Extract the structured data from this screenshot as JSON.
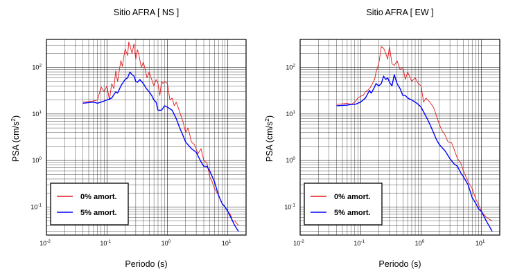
{
  "colors": {
    "series_0": "#e31a1c",
    "series_5": "#0000ff",
    "grid": "#000000"
  },
  "chart_data": [
    {
      "type": "line",
      "title": "Sitio AFRA [ NS ]",
      "xlabel": "Periodo (s)",
      "ylabel_main": "PSA (cm/s",
      "ylabel_sup": "2",
      "ylabel_tail": ")",
      "xscale": "log",
      "yscale": "log",
      "xlim": [
        0.01,
        20
      ],
      "ylim": [
        0.025,
        400
      ],
      "grid": true,
      "legend_position": "bottom-left",
      "x_tick_labels": [
        {
          "base": "10",
          "exp": "-2",
          "value": 0.01
        },
        {
          "base": "10",
          "exp": "-1",
          "value": 0.1
        },
        {
          "base": "10",
          "exp": "0",
          "value": 1
        },
        {
          "base": "10",
          "exp": "1",
          "value": 10
        }
      ],
      "y_tick_labels": [
        {
          "base": "10",
          "exp": "-1",
          "value": 0.1
        },
        {
          "base": "10",
          "exp": "0",
          "value": 1
        },
        {
          "base": "10",
          "exp": "1",
          "value": 10
        },
        {
          "base": "10",
          "exp": "2",
          "value": 100
        }
      ],
      "series": [
        {
          "name": "0% amort.",
          "color_key": "series_0",
          "x": [
            0.04,
            0.06,
            0.07,
            0.08,
            0.09,
            0.1,
            0.11,
            0.12,
            0.13,
            0.14,
            0.15,
            0.17,
            0.18,
            0.2,
            0.22,
            0.23,
            0.24,
            0.26,
            0.28,
            0.3,
            0.32,
            0.34,
            0.37,
            0.4,
            0.43,
            0.46,
            0.5,
            0.55,
            0.6,
            0.65,
            0.7,
            0.75,
            0.8,
            0.85,
            0.9,
            1.0,
            1.1,
            1.2,
            1.3,
            1.4,
            1.6,
            1.8,
            2.0,
            2.2,
            2.5,
            2.8,
            3.2,
            3.6,
            4.0,
            4.5,
            5.0,
            5.5,
            6.0,
            7.0,
            8.0,
            9.0,
            10.0,
            11.0,
            12.0,
            13.0,
            15.0
          ],
          "y": [
            18,
            19,
            20,
            38,
            30,
            40,
            20,
            45,
            35,
            85,
            50,
            140,
            105,
            250,
            180,
            350,
            300,
            200,
            320,
            150,
            240,
            180,
            100,
            130,
            90,
            60,
            80,
            55,
            40,
            55,
            45,
            25,
            50,
            45,
            50,
            45,
            20,
            22,
            15,
            18,
            11,
            7,
            4,
            5,
            2.5,
            2.2,
            1.4,
            1.8,
            1.0,
            0.9,
            0.45,
            0.35,
            0.25,
            0.18,
            0.12,
            0.1,
            0.08,
            0.07,
            0.05,
            0.05,
            0.04
          ]
        },
        {
          "name": "5% amort.",
          "color_key": "series_5",
          "x": [
            0.04,
            0.06,
            0.07,
            0.08,
            0.09,
            0.1,
            0.12,
            0.14,
            0.15,
            0.17,
            0.18,
            0.2,
            0.22,
            0.24,
            0.26,
            0.28,
            0.3,
            0.32,
            0.35,
            0.4,
            0.45,
            0.5,
            0.55,
            0.6,
            0.65,
            0.7,
            0.8,
            0.9,
            1.0,
            1.2,
            1.4,
            1.6,
            1.8,
            2.0,
            2.5,
            3.0,
            3.5,
            4.0,
            4.5,
            5.0,
            6.0,
            7.0,
            8.0,
            9.0,
            10.0,
            12.0,
            13.0,
            15.0
          ],
          "y": [
            17,
            18,
            17,
            18,
            19,
            20,
            22,
            30,
            28,
            40,
            45,
            55,
            60,
            80,
            70,
            65,
            50,
            48,
            55,
            45,
            35,
            30,
            25,
            20,
            18,
            12,
            12,
            15,
            14,
            12,
            8,
            5,
            3.5,
            2.5,
            1.8,
            1.5,
            1.0,
            0.75,
            0.75,
            0.6,
            0.35,
            0.18,
            0.12,
            0.1,
            0.08,
            0.05,
            0.04,
            0.03
          ]
        }
      ]
    },
    {
      "type": "line",
      "title": "Sitio AFRA [ EW ]",
      "xlabel": "Periodo (s)",
      "ylabel_main": "PSA (cm/s",
      "ylabel_sup": "2",
      "ylabel_tail": ")",
      "xscale": "log",
      "yscale": "log",
      "xlim": [
        0.01,
        20
      ],
      "ylim": [
        0.025,
        400
      ],
      "grid": true,
      "legend_position": "bottom-left",
      "x_tick_labels": [
        {
          "base": "10",
          "exp": "-2",
          "value": 0.01
        },
        {
          "base": "10",
          "exp": "-1",
          "value": 0.1
        },
        {
          "base": "10",
          "exp": "0",
          "value": 1
        },
        {
          "base": "10",
          "exp": "1",
          "value": 10
        }
      ],
      "y_tick_labels": [
        {
          "base": "10",
          "exp": "-1",
          "value": 0.1
        },
        {
          "base": "10",
          "exp": "0",
          "value": 1
        },
        {
          "base": "10",
          "exp": "1",
          "value": 10
        },
        {
          "base": "10",
          "exp": "2",
          "value": 100
        }
      ],
      "series": [
        {
          "name": "0% amort.",
          "color_key": "series_0",
          "x": [
            0.04,
            0.06,
            0.07,
            0.08,
            0.09,
            0.1,
            0.11,
            0.12,
            0.13,
            0.14,
            0.15,
            0.17,
            0.18,
            0.2,
            0.22,
            0.24,
            0.26,
            0.28,
            0.3,
            0.33,
            0.36,
            0.4,
            0.45,
            0.5,
            0.55,
            0.6,
            0.7,
            0.8,
            0.9,
            1.0,
            1.1,
            1.2,
            1.4,
            1.6,
            1.8,
            2.0,
            2.2,
            2.5,
            2.8,
            3.2,
            3.6,
            4.0,
            4.5,
            5.0,
            5.5,
            6.0,
            7.0,
            8.0,
            9.0,
            10.0,
            12.0,
            15.0
          ],
          "y": [
            16,
            17,
            16,
            18,
            22,
            24,
            25,
            30,
            32,
            35,
            40,
            55,
            80,
            120,
            280,
            260,
            200,
            150,
            280,
            120,
            110,
            140,
            90,
            100,
            55,
            80,
            50,
            60,
            45,
            40,
            18,
            22,
            18,
            14,
            9,
            6,
            4.5,
            3.5,
            2.5,
            2.4,
            1.6,
            1.1,
            0.9,
            0.6,
            0.45,
            0.35,
            0.25,
            0.15,
            0.11,
            0.08,
            0.06,
            0.05
          ]
        },
        {
          "name": "5% amort.",
          "color_key": "series_5",
          "x": [
            0.04,
            0.06,
            0.07,
            0.08,
            0.09,
            0.1,
            0.12,
            0.14,
            0.15,
            0.17,
            0.18,
            0.2,
            0.22,
            0.24,
            0.26,
            0.28,
            0.3,
            0.33,
            0.36,
            0.4,
            0.45,
            0.5,
            0.55,
            0.6,
            0.7,
            0.8,
            0.9,
            1.0,
            1.2,
            1.4,
            1.6,
            1.8,
            2.0,
            2.5,
            3.0,
            3.5,
            4.0,
            4.5,
            5.0,
            6.0,
            7.0,
            8.0,
            9.0,
            10.0,
            12.0,
            15.0
          ],
          "y": [
            15,
            15.5,
            16,
            16,
            17,
            18,
            22,
            32,
            28,
            38,
            45,
            40,
            45,
            65,
            55,
            60,
            48,
            40,
            70,
            45,
            35,
            25,
            25,
            22,
            20,
            18,
            16,
            14,
            9,
            6,
            4,
            2.8,
            2.2,
            1.6,
            1.1,
            0.85,
            0.75,
            0.55,
            0.45,
            0.3,
            0.16,
            0.12,
            0.09,
            0.08,
            0.05,
            0.03
          ]
        }
      ]
    }
  ]
}
